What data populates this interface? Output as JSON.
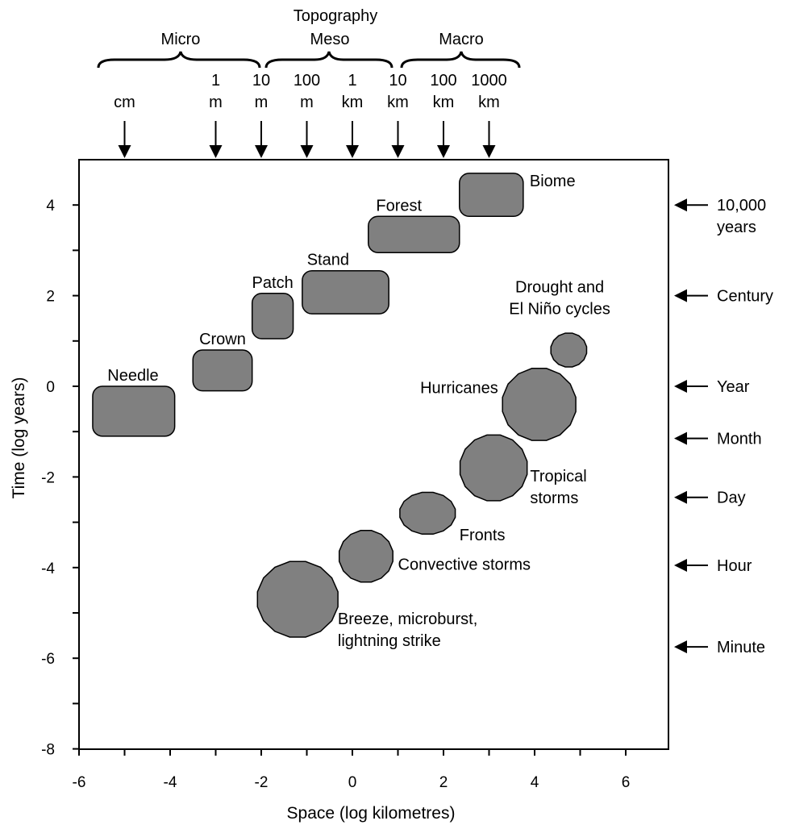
{
  "chart_data": {
    "type": "scatter",
    "xlabel": "Space (log kilometres)",
    "ylabel": "Time (log years)",
    "xlim": [
      -6.8,
      6.8
    ],
    "ylim": [
      -8,
      5
    ],
    "x_ticks": [
      "-6",
      "-4",
      "-2",
      "0",
      "2",
      "4",
      "6"
    ],
    "y_ticks": [
      "4",
      "2",
      "0",
      "-2",
      "-4",
      "-6",
      "-8"
    ],
    "scale_groups": {
      "topography": "Topography",
      "micro": "Micro",
      "meso": "Meso",
      "macro": "Macro"
    },
    "top_scale": [
      {
        "x": -5,
        "line1": "",
        "line2": "cm"
      },
      {
        "x": -3,
        "line1": "1",
        "line2": "m"
      },
      {
        "x": -2,
        "line1": "10",
        "line2": "m"
      },
      {
        "x": -1,
        "line1": "100",
        "line2": "m"
      },
      {
        "x": 0,
        "line1": "1",
        "line2": "km"
      },
      {
        "x": 1,
        "line1": "10",
        "line2": "km"
      },
      {
        "x": 2,
        "line1": "100",
        "line2": "km"
      },
      {
        "x": 3,
        "line1": "1000",
        "line2": "km"
      }
    ],
    "right_scale": [
      {
        "y": 4,
        "line1": "10,000",
        "line2": "years"
      },
      {
        "y": 2,
        "line1": "Century",
        "line2": ""
      },
      {
        "y": 0,
        "line1": "Year",
        "line2": ""
      },
      {
        "y": -1.15,
        "line1": "Month",
        "line2": ""
      },
      {
        "y": -2.45,
        "line1": "Day",
        "line2": ""
      },
      {
        "y": -3.95,
        "line1": "Hour",
        "line2": ""
      },
      {
        "y": -5.75,
        "line1": "Minute",
        "line2": ""
      }
    ],
    "vegetation": [
      {
        "name": "Needle",
        "x0": -5.7,
        "x1": -3.9,
        "y0": -1.1,
        "y1": 0
      },
      {
        "name": "Crown",
        "x0": -3.5,
        "x1": -2.2,
        "y0": -0.1,
        "y1": 0.8
      },
      {
        "name": "Patch",
        "x0": -2.2,
        "x1": -1.3,
        "y0": 1.05,
        "y1": 2.05
      },
      {
        "name": "Stand",
        "x0": -1.1,
        "x1": 0.8,
        "y0": 1.6,
        "y1": 2.55
      },
      {
        "name": "Forest",
        "x0": 0.35,
        "x1": 2.35,
        "y0": 2.95,
        "y1": 3.75
      },
      {
        "name": "Biome",
        "x0": 2.35,
        "x1": 3.75,
        "y0": 3.75,
        "y1": 4.7
      }
    ],
    "atmospheric": [
      {
        "name": "Breeze, microburst,",
        "name2": "lightning strike",
        "x": -1.2,
        "y": -4.7,
        "rx": 0.9,
        "ry": 0.85
      },
      {
        "name": "Convective storms",
        "name2": "",
        "x": 0.3,
        "y": -3.75,
        "rx": 0.6,
        "ry": 0.58
      },
      {
        "name": "Fronts",
        "name2": "",
        "x": 1.65,
        "y": -2.8,
        "rx": 0.62,
        "ry": 0.47
      },
      {
        "name": "Tropical",
        "name2": "storms",
        "x": 3.1,
        "y": -1.8,
        "rx": 0.75,
        "ry": 0.74
      },
      {
        "name": "Hurricanes",
        "name2": "",
        "x": 4.1,
        "y": -0.4,
        "rx": 0.82,
        "ry": 0.81
      },
      {
        "name": "Drought and",
        "name2": "El Niño cycles",
        "x": 4.75,
        "y": 0.8,
        "rx": 0.4,
        "ry": 0.38
      }
    ],
    "colors": {
      "fill": "#808080",
      "stroke": "#000000"
    }
  }
}
